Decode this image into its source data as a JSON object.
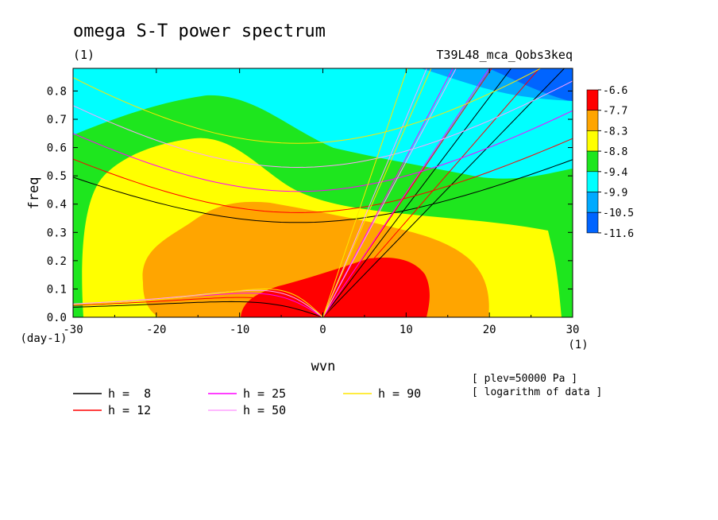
{
  "chart_data": {
    "type": "heatmap",
    "title": "omega S-T power spectrum",
    "subtitle": "(1)",
    "run_label": "T39L48_mca_Qobs3keq",
    "xlabel": "wvn",
    "x_unit": "(1)",
    "ylabel": "freq",
    "y_unit": "(day-1)",
    "xlim": [
      -30,
      30
    ],
    "ylim": [
      0,
      0.88
    ],
    "xticks": [
      "-30",
      "-20",
      "-10",
      "0",
      "10",
      "20",
      "30"
    ],
    "yticks": [
      "0.0",
      "0.1",
      "0.2",
      "0.3",
      "0.4",
      "0.5",
      "0.6",
      "0.7",
      "0.8"
    ],
    "colorbar": {
      "labels": [
        "-6.6",
        "-7.7",
        "-8.3",
        "-8.8",
        "-9.4",
        "-9.9",
        "-10.5",
        "-11.6"
      ],
      "colors": [
        "#ff0000",
        "#ffa500",
        "#ffff00",
        "#1ee61e",
        "#00ffff",
        "#00aaff",
        "#0064ff"
      ]
    },
    "notes": [
      "[ plev=50000 Pa ]",
      "[ logarithm of data ]"
    ],
    "legend": [
      {
        "label": "h =  8",
        "color": "#000000"
      },
      {
        "label": "h = 12",
        "color": "#ff0000"
      },
      {
        "label": "h = 25",
        "color": "#ff00ff"
      },
      {
        "label": "h = 50",
        "color": "#ffa0ff"
      },
      {
        "label": "h = 90",
        "color": "#ffe600"
      }
    ],
    "dispersion_curves": [
      {
        "name": "h = 8",
        "color": "#000000",
        "kelvin_x_at_top": 29,
        "low_freq": 0.055,
        "low_x": -11,
        "ig_min": 0.335
      },
      {
        "name": "h = 12",
        "color": "#ff0000",
        "kelvin_x_at_top": 26,
        "low_freq": 0.07,
        "low_x": -10,
        "ig_min": 0.37
      },
      {
        "name": "h = 25",
        "color": "#ff00ff",
        "kelvin_x_at_top": 20,
        "low_freq": 0.085,
        "low_x": -9,
        "ig_min": 0.445
      },
      {
        "name": "h = 50",
        "color": "#ffa0ff",
        "kelvin_x_at_top": 16,
        "low_freq": 0.095,
        "low_x": -8,
        "ig_min": 0.53
      },
      {
        "name": "h = 90",
        "color": "#ffe600",
        "kelvin_x_at_top": 13,
        "low_freq": 0.1,
        "low_x": -7,
        "ig_min": 0.615
      }
    ]
  }
}
